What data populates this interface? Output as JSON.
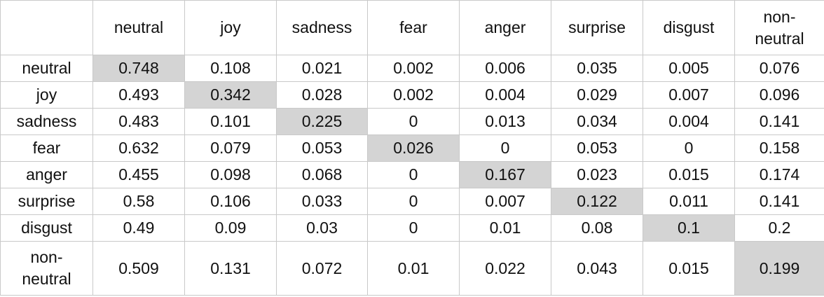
{
  "columns": [
    "neutral",
    "joy",
    "sadness",
    "fear",
    "anger",
    "surprise",
    "disgust",
    "non-\nneutral"
  ],
  "rows": [
    {
      "label": "neutral",
      "values": [
        "0.748",
        "0.108",
        "0.021",
        "0.002",
        "0.006",
        "0.035",
        "0.005",
        "0.076"
      ]
    },
    {
      "label": "joy",
      "values": [
        "0.493",
        "0.342",
        "0.028",
        "0.002",
        "0.004",
        "0.029",
        "0.007",
        "0.096"
      ]
    },
    {
      "label": "sadness",
      "values": [
        "0.483",
        "0.101",
        "0.225",
        "0",
        "0.013",
        "0.034",
        "0.004",
        "0.141"
      ]
    },
    {
      "label": "fear",
      "values": [
        "0.632",
        "0.079",
        "0.053",
        "0.026",
        "0",
        "0.053",
        "0",
        "0.158"
      ]
    },
    {
      "label": "anger",
      "values": [
        "0.455",
        "0.098",
        "0.068",
        "0",
        "0.167",
        "0.023",
        "0.015",
        "0.174"
      ]
    },
    {
      "label": "surprise",
      "values": [
        "0.58",
        "0.106",
        "0.033",
        "0",
        "0.007",
        "0.122",
        "0.011",
        "0.141"
      ]
    },
    {
      "label": "disgust",
      "values": [
        "0.49",
        "0.09",
        "0.03",
        "0",
        "0.01",
        "0.08",
        "0.1",
        "0.2"
      ]
    },
    {
      "label": "non-\nneutral",
      "values": [
        "0.509",
        "0.131",
        "0.072",
        "0.01",
        "0.022",
        "0.043",
        "0.015",
        "0.199"
      ]
    }
  ],
  "highlight_color": "#d4d4d4",
  "bold_diagonal_rows": [
    "joy",
    "sadness",
    "anger",
    "surprise"
  ]
}
